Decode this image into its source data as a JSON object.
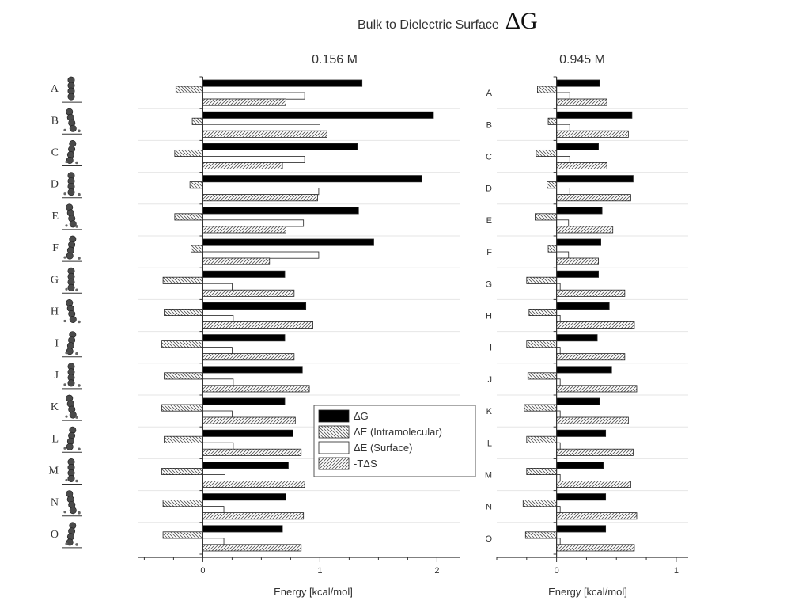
{
  "title": "Bulk to Dielectric Surface",
  "title_symbol": "ΔG",
  "icons": {
    "molecule": "bead-chain-molecule-icon"
  },
  "colors": {
    "dG": "#000000",
    "hatch": "#555555",
    "axis": "#333333",
    "background": "#ffffff"
  },
  "chart_data": [
    {
      "type": "bar",
      "orientation": "horizontal",
      "title": "0.156 M",
      "xlabel": "Energy [kcal/mol]",
      "ylabel": "",
      "xlim": [
        -0.55,
        2.2
      ],
      "xticks": [
        0,
        1,
        2
      ],
      "xtick_labels": [
        "0",
        "1",
        "2"
      ],
      "grid": false,
      "legend_position": "bottom-right",
      "categories": [
        "A",
        "B",
        "C",
        "D",
        "E",
        "F",
        "G",
        "H",
        "I",
        "J",
        "K",
        "L",
        "M",
        "N",
        "O"
      ],
      "series": [
        {
          "name": "ΔG",
          "values": [
            1.36,
            1.97,
            1.32,
            1.87,
            1.33,
            1.46,
            0.7,
            0.88,
            0.7,
            0.85,
            0.7,
            0.77,
            0.73,
            0.71,
            0.68
          ]
        },
        {
          "name": "ΔE (Intramolecular)",
          "values": [
            -0.23,
            -0.09,
            -0.24,
            -0.11,
            -0.24,
            -0.1,
            -0.34,
            -0.33,
            -0.35,
            -0.33,
            -0.35,
            -0.33,
            -0.35,
            -0.34,
            -0.34
          ]
        },
        {
          "name": "ΔE (Surface)",
          "values": [
            0.87,
            1.0,
            0.87,
            0.99,
            0.86,
            0.99,
            0.25,
            0.26,
            0.25,
            0.26,
            0.25,
            0.26,
            0.19,
            0.18,
            0.18
          ]
        },
        {
          "name": "-TΔS",
          "values": [
            0.71,
            1.06,
            0.68,
            0.98,
            0.71,
            0.57,
            0.78,
            0.94,
            0.78,
            0.91,
            0.79,
            0.84,
            0.87,
            0.86,
            0.84
          ]
        }
      ]
    },
    {
      "type": "bar",
      "orientation": "horizontal",
      "title": "0.945 M",
      "xlabel": "Energy [kcal/mol]",
      "ylabel": "",
      "xlim": [
        -0.5,
        1.1
      ],
      "xticks": [
        0,
        1
      ],
      "xtick_labels": [
        "0",
        "1"
      ],
      "grid": false,
      "categories": [
        "A",
        "B",
        "C",
        "D",
        "E",
        "F",
        "G",
        "H",
        "I",
        "J",
        "K",
        "L",
        "M",
        "N",
        "O"
      ],
      "series": [
        {
          "name": "ΔG",
          "values": [
            0.36,
            0.63,
            0.35,
            0.64,
            0.38,
            0.37,
            0.35,
            0.44,
            0.34,
            0.46,
            0.36,
            0.41,
            0.39,
            0.41,
            0.41
          ]
        },
        {
          "name": "ΔE (Intramolecular)",
          "values": [
            -0.16,
            -0.07,
            -0.17,
            -0.08,
            -0.18,
            -0.07,
            -0.25,
            -0.23,
            -0.25,
            -0.24,
            -0.27,
            -0.25,
            -0.25,
            -0.28,
            -0.26
          ]
        },
        {
          "name": "ΔE (Surface)",
          "values": [
            0.11,
            0.11,
            0.11,
            0.11,
            0.1,
            0.1,
            0.03,
            0.03,
            0.03,
            0.03,
            0.03,
            0.03,
            0.03,
            0.03,
            0.03
          ]
        },
        {
          "name": "-TΔS",
          "values": [
            0.42,
            0.6,
            0.42,
            0.62,
            0.47,
            0.35,
            0.57,
            0.65,
            0.57,
            0.67,
            0.6,
            0.64,
            0.62,
            0.67,
            0.65
          ]
        }
      ]
    }
  ],
  "molecule_labels": [
    "A",
    "B",
    "C",
    "D",
    "E",
    "F",
    "G",
    "H",
    "I",
    "J",
    "K",
    "L",
    "M",
    "N",
    "O"
  ]
}
